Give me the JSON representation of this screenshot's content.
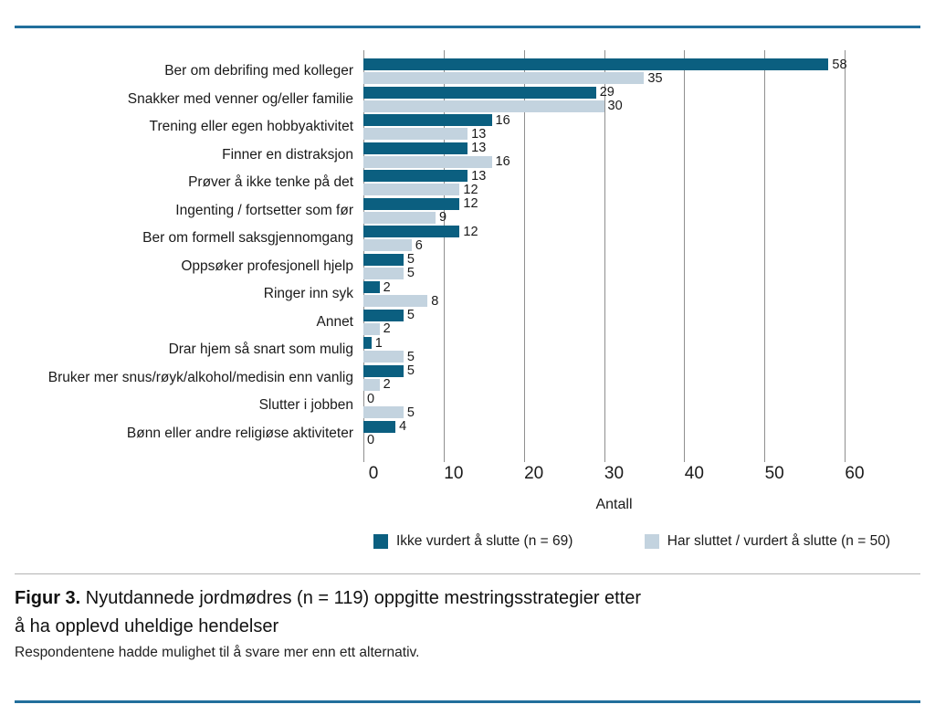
{
  "chart_data": {
    "type": "bar",
    "orientation": "horizontal",
    "categories": [
      "Ber om debrifing med kolleger",
      "Snakker med venner og/eller familie",
      "Trening eller egen hobbyaktivitet",
      "Finner en distraksjon",
      "Prøver å ikke tenke på det",
      "Ingenting / fortsetter som før",
      "Ber om formell saksgjennomgang",
      "Oppsøker profesjonell hjelp",
      "Ringer inn syk",
      "Annet",
      "Drar hjem så snart som mulig",
      "Bruker mer snus/røyk/alkohol/medisin enn vanlig",
      "Slutter i jobben",
      "Bønn eller andre religiøse aktiviteter"
    ],
    "series": [
      {
        "name": "Ikke vurdert å slutte (n = 69)",
        "color": "#0b5f80",
        "values": [
          58,
          29,
          16,
          13,
          13,
          12,
          12,
          5,
          2,
          5,
          1,
          5,
          0,
          4
        ]
      },
      {
        "name": "Har sluttet / vurdert å slutte (n = 50)",
        "color": "#c3d3df",
        "values": [
          35,
          30,
          13,
          16,
          12,
          9,
          6,
          5,
          8,
          2,
          5,
          2,
          5,
          0
        ]
      }
    ],
    "xlabel": "Antall",
    "xlim": [
      0,
      60
    ],
    "xticks": [
      0,
      10,
      20,
      30,
      40,
      50,
      60
    ],
    "grid": true,
    "legend_position": "bottom"
  },
  "colors": {
    "rule": "#226f9c",
    "grid": "#8f8f8f",
    "text": "#1a1a1a"
  },
  "caption": {
    "label": "Figur 3.",
    "title_line1": "Nyutdannede jordmødres (n = 119) oppgitte mestringsstrategier etter",
    "title_line2": "å ha opplevd uheldige hendelser",
    "note": "Respondentene hadde mulighet til å svare mer enn ett alternativ."
  }
}
